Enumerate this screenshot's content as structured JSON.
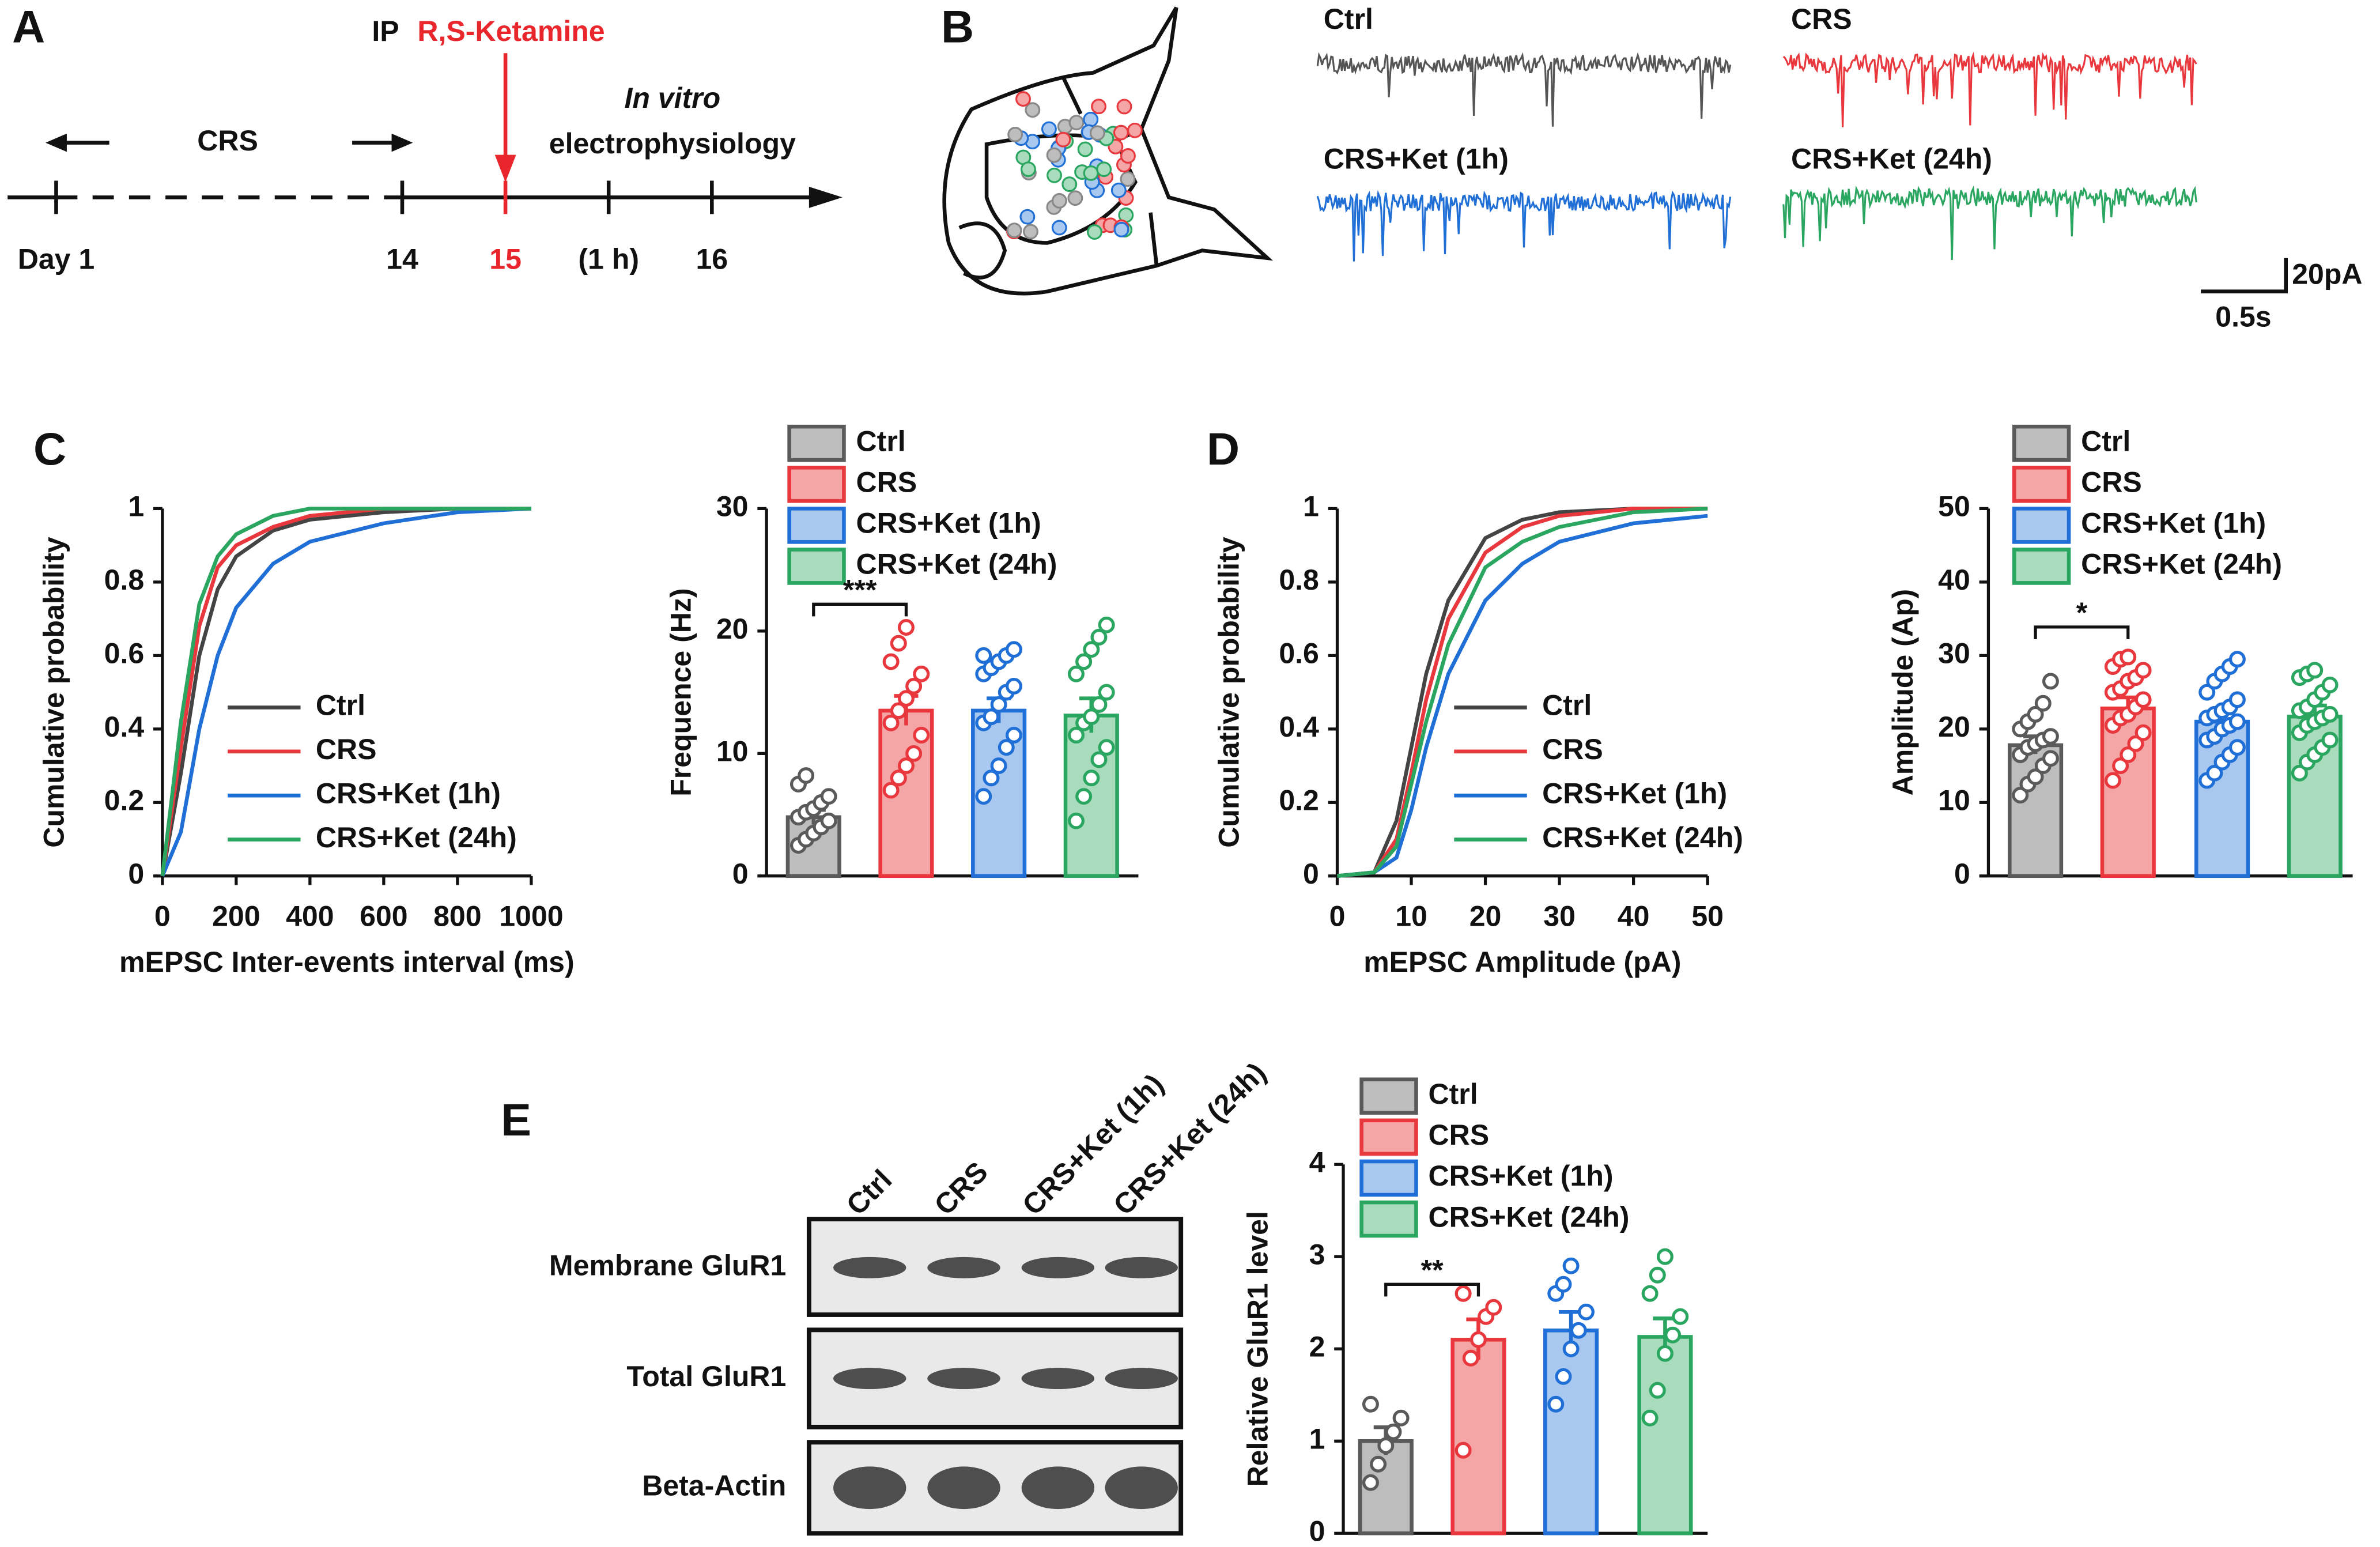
{
  "panel_labels": [
    "A",
    "B",
    "C",
    "D",
    "E"
  ],
  "timeline": {
    "ip": "IP",
    "drug": "R,S-Ketamine",
    "crs": "CRS",
    "in_vitro": "In vitro",
    "method": "electrophysiology",
    "days": [
      "Day 1",
      "14",
      "15",
      "(1 h)",
      "16"
    ]
  },
  "traces": {
    "labels": [
      "Ctrl",
      "CRS",
      "CRS+Ket (1h)",
      "CRS+Ket (24h)"
    ],
    "scale_y": "20pA",
    "scale_x": "0.5s"
  },
  "blot": {
    "lanes": [
      "Ctrl",
      "CRS",
      "CRS+Ket (1h)",
      "CRS+Ket (24h)"
    ],
    "rows": [
      "Membrane GluR1",
      "Total GluR1",
      "Beta-Actin"
    ]
  },
  "chart_data": [
    {
      "type": "line",
      "ylabel": "Cumulative probability",
      "xlabel": "mEPSC Inter-events interval (ms)",
      "x": [
        0,
        50,
        100,
        150,
        200,
        300,
        400,
        600,
        800,
        1000
      ],
      "xlim": [
        0,
        1000
      ],
      "xticks": [
        0,
        200,
        400,
        600,
        800,
        1000
      ],
      "ylim": [
        0,
        1
      ],
      "yticks": [
        0,
        0.2,
        0.4,
        0.6,
        0.8,
        1
      ],
      "series": [
        {
          "name": "Ctrl",
          "color": "#444444",
          "values": [
            0,
            0.28,
            0.6,
            0.78,
            0.87,
            0.94,
            0.97,
            0.99,
            1,
            1
          ]
        },
        {
          "name": "CRS",
          "color": "#e8383d",
          "values": [
            0,
            0.35,
            0.68,
            0.84,
            0.9,
            0.95,
            0.98,
            1,
            1,
            1
          ]
        },
        {
          "name": "CRS+Ket (1h)",
          "color": "#1f6fd6",
          "values": [
            0,
            0.12,
            0.4,
            0.6,
            0.73,
            0.85,
            0.91,
            0.96,
            0.99,
            1
          ]
        },
        {
          "name": "CRS+Ket (24h)",
          "color": "#2aa661",
          "values": [
            0,
            0.42,
            0.74,
            0.87,
            0.93,
            0.98,
            1,
            1,
            1,
            1
          ]
        }
      ]
    },
    {
      "type": "bar",
      "ylabel": "Frequence (Hz)",
      "ylim": [
        0,
        30
      ],
      "yticks": [
        0,
        10,
        20,
        30
      ],
      "annotations": [
        "***"
      ],
      "series": [
        {
          "name": "Ctrl",
          "color": "#5a5a5a",
          "fill": "#bdbdbd",
          "values": [
            4.8
          ],
          "errors": [
            0.6
          ],
          "points": [
            2.5,
            3,
            3.5,
            4,
            4.5,
            4.8,
            5.2,
            5.5,
            6,
            6.5,
            7.5,
            8.2
          ]
        },
        {
          "name": "CRS",
          "color": "#e8383d",
          "fill": "#f4a6a6",
          "values": [
            13.5
          ],
          "errors": [
            1.2
          ],
          "points": [
            7,
            8,
            9,
            10,
            11.5,
            12.5,
            13.5,
            14.5,
            15.5,
            16.5,
            17.5,
            19,
            20.3
          ]
        },
        {
          "name": "CRS+Ket (1h)",
          "color": "#1f6fd6",
          "fill": "#a9c8f0",
          "values": [
            13.5
          ],
          "errors": [
            1.0
          ],
          "points": [
            6.5,
            8,
            9,
            10.5,
            11.5,
            12.5,
            13,
            14,
            15,
            15.5,
            16.5,
            17,
            17.5,
            18,
            18.5,
            18
          ]
        },
        {
          "name": "CRS+Ket (24h)",
          "color": "#2aa661",
          "fill": "#a8dcbc",
          "values": [
            13.1
          ],
          "errors": [
            1.4
          ],
          "points": [
            4.5,
            6.5,
            8,
            9.5,
            10.5,
            11.5,
            12.5,
            13,
            14,
            15,
            16.5,
            17.5,
            18.5,
            19.5,
            20.5
          ]
        }
      ]
    },
    {
      "type": "line",
      "ylabel": "Cumulative probability",
      "xlabel": "mEPSC Amplitude (pA)",
      "x": [
        0,
        5,
        8,
        10,
        12,
        15,
        20,
        25,
        30,
        40,
        50
      ],
      "xlim": [
        0,
        50
      ],
      "xticks": [
        0,
        10,
        20,
        30,
        40,
        50
      ],
      "ylim": [
        0,
        1
      ],
      "yticks": [
        0,
        0.2,
        0.4,
        0.6,
        0.8,
        1
      ],
      "series": [
        {
          "name": "Ctrl",
          "color": "#444444",
          "values": [
            0,
            0.01,
            0.15,
            0.35,
            0.55,
            0.75,
            0.92,
            0.97,
            0.99,
            1,
            1
          ]
        },
        {
          "name": "CRS",
          "color": "#e8383d",
          "values": [
            0,
            0.01,
            0.1,
            0.28,
            0.48,
            0.7,
            0.88,
            0.95,
            0.98,
            1,
            1
          ]
        },
        {
          "name": "CRS+Ket (1h)",
          "color": "#1f6fd6",
          "values": [
            0,
            0.01,
            0.05,
            0.18,
            0.35,
            0.55,
            0.75,
            0.85,
            0.91,
            0.96,
            0.98
          ]
        },
        {
          "name": "CRS+Ket (24h)",
          "color": "#2aa661",
          "values": [
            0,
            0.01,
            0.08,
            0.25,
            0.42,
            0.63,
            0.84,
            0.91,
            0.95,
            0.99,
            1
          ]
        }
      ]
    },
    {
      "type": "bar",
      "ylabel": "Amplitude (Ap)",
      "ylim": [
        0,
        50
      ],
      "yticks": [
        0,
        10,
        20,
        30,
        40,
        50
      ],
      "annotations": [
        "*"
      ],
      "series": [
        {
          "name": "Ctrl",
          "color": "#5a5a5a",
          "fill": "#bdbdbd",
          "values": [
            17.8
          ],
          "errors": [
            1.2
          ],
          "points": [
            11,
            12.5,
            13.5,
            15,
            16,
            16.5,
            17.5,
            18,
            18.5,
            19,
            20,
            21,
            22,
            23.5,
            26.5
          ]
        },
        {
          "name": "CRS",
          "color": "#e8383d",
          "fill": "#f4a6a6",
          "values": [
            22.8
          ],
          "errors": [
            1.5
          ],
          "points": [
            13,
            15,
            16.5,
            18,
            19.5,
            20.5,
            21.5,
            22,
            23,
            24,
            25,
            25.5,
            26.5,
            27,
            28,
            28.5,
            29.5,
            29.8
          ]
        },
        {
          "name": "CRS+Ket (1h)",
          "color": "#1f6fd6",
          "fill": "#a9c8f0",
          "values": [
            21.0
          ],
          "errors": [
            1.3
          ],
          "points": [
            13,
            14,
            15.5,
            16.5,
            17.5,
            18.5,
            19,
            20,
            20.5,
            21,
            21.5,
            22,
            22.5,
            23,
            24,
            25,
            26.5,
            27.5,
            28.5,
            29.5
          ]
        },
        {
          "name": "CRS+Ket (24h)",
          "color": "#2aa661",
          "fill": "#a8dcbc",
          "values": [
            21.7
          ],
          "errors": [
            1.5
          ],
          "points": [
            14,
            15.5,
            16.5,
            17.5,
            18.5,
            19.5,
            20.5,
            21,
            21.5,
            22,
            22.5,
            23,
            24,
            25,
            26,
            27,
            27.5,
            28
          ]
        }
      ]
    },
    {
      "type": "bar",
      "ylabel": "Relative GluR1 level",
      "ylim": [
        0,
        4
      ],
      "yticks": [
        0,
        1,
        2,
        3,
        4
      ],
      "annotations": [
        "**"
      ],
      "series": [
        {
          "name": "Ctrl",
          "color": "#5a5a5a",
          "fill": "#bdbdbd",
          "values": [
            1.0
          ],
          "errors": [
            0.15
          ],
          "points": [
            0.55,
            0.75,
            0.95,
            1.1,
            1.25,
            1.4
          ]
        },
        {
          "name": "CRS",
          "color": "#e8383d",
          "fill": "#f4a6a6",
          "values": [
            2.1
          ],
          "errors": [
            0.22
          ],
          "points": [
            0.9,
            1.9,
            2.1,
            2.35,
            2.45,
            2.6
          ]
        },
        {
          "name": "CRS+Ket (1h)",
          "color": "#1f6fd6",
          "fill": "#a9c8f0",
          "values": [
            2.2
          ],
          "errors": [
            0.2
          ],
          "points": [
            1.4,
            1.7,
            2.0,
            2.2,
            2.4,
            2.6,
            2.7,
            2.9
          ]
        },
        {
          "name": "CRS+Ket (24h)",
          "color": "#2aa661",
          "fill": "#a8dcbc",
          "values": [
            2.13
          ],
          "errors": [
            0.2
          ],
          "points": [
            1.25,
            1.55,
            1.95,
            2.15,
            2.35,
            2.6,
            2.8,
            3.0
          ]
        }
      ]
    }
  ]
}
